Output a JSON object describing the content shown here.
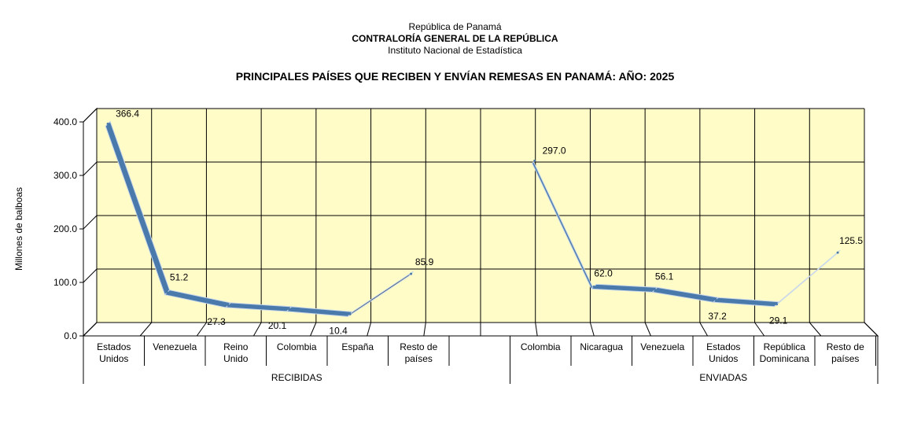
{
  "header": {
    "line1": "República de Panamá",
    "line2": "CONTRALORÍA GENERAL DE LA REPÚBLICA",
    "line3": "Instituto Nacional de Estadística"
  },
  "chart_data": {
    "type": "line",
    "title": "PRINCIPALES PAÍSES QUE RECIBEN Y ENVÍAN REMESAS EN PANAMÁ: AÑO: 2025",
    "ylabel": "Millones de balboas",
    "xlabel": "",
    "ylim": [
      0,
      400
    ],
    "yticks": [
      "0.0",
      "100.0",
      "200.0",
      "300.0",
      "400.0"
    ],
    "grid": true,
    "colors": {
      "line": "#4a7aab",
      "line_dark": "#2e4a6b",
      "wall": "#fffcc8"
    },
    "groups": [
      {
        "name": "RECIBIDAS",
        "categories": [
          "Estados Unidos",
          "Venezuela",
          "Reino Unido",
          "Colombia",
          "España",
          "Resto de países"
        ],
        "values": [
          366.4,
          51.2,
          27.3,
          20.1,
          10.4,
          85.9
        ],
        "labels": [
          "366.4",
          "51.2",
          "27.3",
          "20.1",
          "10.4",
          "85.9"
        ]
      },
      {
        "name": "ENVIADAS",
        "categories": [
          "Colombia",
          "Nicaragua",
          "Venezuela",
          "Estados Unidos",
          "República Dominicana",
          "Resto de países"
        ],
        "values": [
          297.0,
          62.0,
          56.1,
          37.2,
          29.1,
          125.5
        ],
        "labels": [
          "297.0",
          "62.0",
          "56.1",
          "37.2",
          "29.1",
          "125.5"
        ]
      }
    ]
  }
}
